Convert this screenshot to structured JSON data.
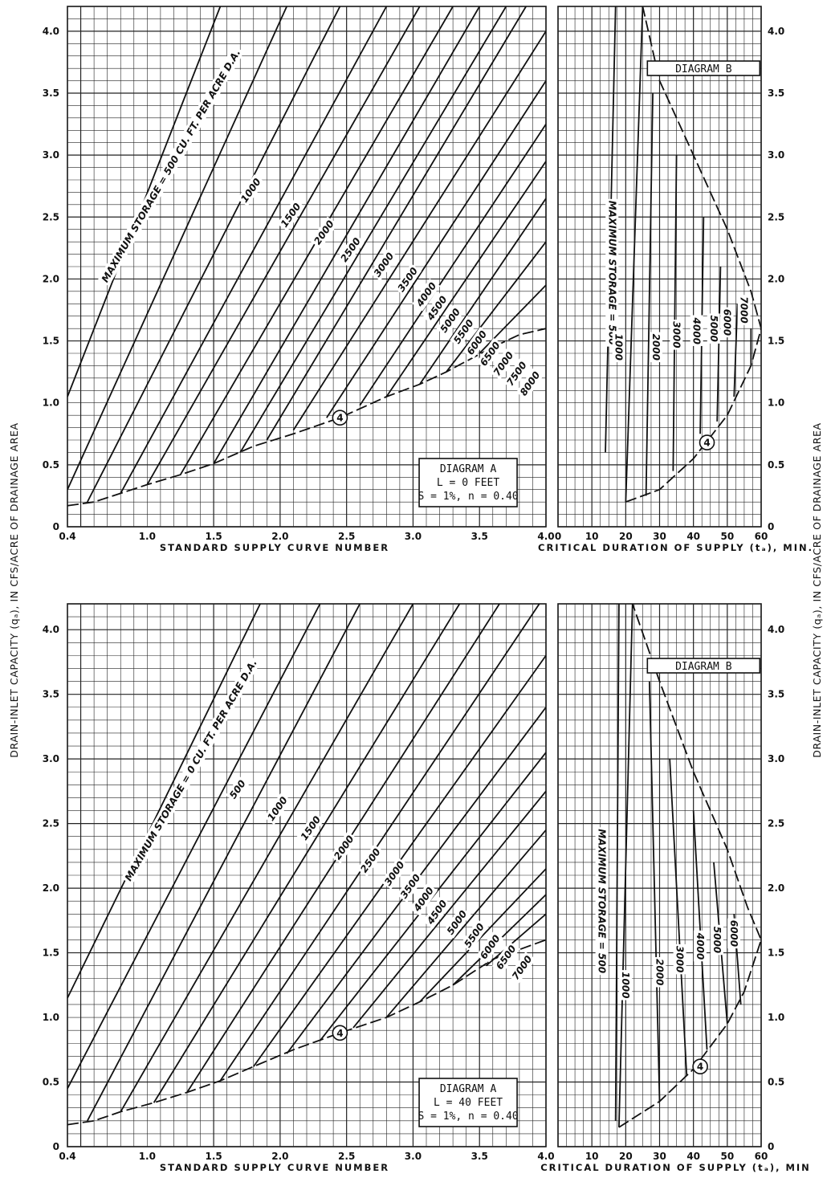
{
  "y_axis_label": "DRAIN-INLET CAPACITY (qₐ), IN CFS/ACRE OF DRAINAGE AREA",
  "colors": {
    "ink": "#111111",
    "grid": "#222222",
    "paper": "#ffffff"
  },
  "chart_data": [
    {
      "type": "line",
      "panel": "upper-left",
      "xlabel": "STANDARD SUPPLY CURVE NUMBER",
      "ylabel": "",
      "xlim": [
        0.4,
        4.0
      ],
      "ylim": [
        0,
        4.2
      ],
      "x_ticks": [
        "0.4",
        "1.0",
        "1.5",
        "2.0",
        "2.5",
        "3.0",
        "3.5",
        "4.0"
      ],
      "y_ticks": [
        "0",
        "0.5",
        "1.0",
        "1.5",
        "2.0",
        "2.5",
        "3.0",
        "3.5",
        "4.0"
      ],
      "legend_box": [
        "DIAGRAM A",
        "L = 0 FEET",
        "S = 1%, n = 0.40"
      ],
      "marker_label": "4",
      "marker_point": [
        2.45,
        0.88
      ],
      "series": [
        {
          "name": "MAXIMUM STORAGE = 500 CU. FT. PER ACRE D.A.",
          "x": [
            0.4,
            1.55
          ],
          "y": [
            1.05,
            4.2
          ]
        },
        {
          "name": "1000",
          "x": [
            0.4,
            2.05
          ],
          "y": [
            0.3,
            4.2
          ]
        },
        {
          "name": "1500",
          "x": [
            0.55,
            2.45
          ],
          "y": [
            0.2,
            4.2
          ]
        },
        {
          "name": "2000",
          "x": [
            0.8,
            2.8
          ],
          "y": [
            0.27,
            4.2
          ]
        },
        {
          "name": "2500",
          "x": [
            1.0,
            3.05
          ],
          "y": [
            0.34,
            4.2
          ]
        },
        {
          "name": "3000",
          "x": [
            1.25,
            3.3
          ],
          "y": [
            0.42,
            4.2
          ]
        },
        {
          "name": "3500",
          "x": [
            1.5,
            3.5
          ],
          "y": [
            0.51,
            4.2
          ]
        },
        {
          "name": "4000",
          "x": [
            1.7,
            3.7
          ],
          "y": [
            0.6,
            4.2
          ]
        },
        {
          "name": "4500",
          "x": [
            1.9,
            3.85
          ],
          "y": [
            0.7,
            4.2
          ]
        },
        {
          "name": "5000",
          "x": [
            2.1,
            4.0
          ],
          "y": [
            0.78,
            4.0
          ]
        },
        {
          "name": "5500",
          "x": [
            2.35,
            4.0
          ],
          "y": [
            0.88,
            3.6
          ]
        },
        {
          "name": "6000",
          "x": [
            2.6,
            4.0
          ],
          "y": [
            0.98,
            3.25
          ]
        },
        {
          "name": "6500",
          "x": [
            2.8,
            4.0
          ],
          "y": [
            1.05,
            2.95
          ]
        },
        {
          "name": "7000",
          "x": [
            3.05,
            4.0
          ],
          "y": [
            1.15,
            2.65
          ]
        },
        {
          "name": "7500",
          "x": [
            3.25,
            4.0
          ],
          "y": [
            1.25,
            2.3
          ]
        },
        {
          "name": "8000",
          "x": [
            3.5,
            4.0
          ],
          "y": [
            1.4,
            1.95
          ]
        }
      ],
      "curve_labels": [
        {
          "text": "MAXIMUM STORAGE = 500 CU. FT. PER ACRE D.A.",
          "x": 1.2,
          "y": 2.9,
          "angle": -60
        },
        {
          "text": "1000",
          "x": 1.8,
          "y": 2.7,
          "angle": -55
        },
        {
          "text": "1500",
          "x": 2.1,
          "y": 2.5,
          "angle": -55
        },
        {
          "text": "2000",
          "x": 2.35,
          "y": 2.36,
          "angle": -55
        },
        {
          "text": "2500",
          "x": 2.55,
          "y": 2.22,
          "angle": -55
        },
        {
          "text": "3000",
          "x": 2.8,
          "y": 2.1,
          "angle": -55
        },
        {
          "text": "3500",
          "x": 2.98,
          "y": 1.98,
          "angle": -55
        },
        {
          "text": "4000",
          "x": 3.12,
          "y": 1.86,
          "angle": -55
        },
        {
          "text": "4500",
          "x": 3.2,
          "y": 1.75,
          "angle": -55
        },
        {
          "text": "5000",
          "x": 3.3,
          "y": 1.65,
          "angle": -55
        },
        {
          "text": "5500",
          "x": 3.4,
          "y": 1.56,
          "angle": -55
        },
        {
          "text": "6000",
          "x": 3.5,
          "y": 1.47,
          "angle": -55
        },
        {
          "text": "6500",
          "x": 3.6,
          "y": 1.38,
          "angle": -55
        },
        {
          "text": "7000",
          "x": 3.7,
          "y": 1.3,
          "angle": -55
        },
        {
          "text": "7500",
          "x": 3.8,
          "y": 1.22,
          "angle": -55
        },
        {
          "text": "8000",
          "x": 3.9,
          "y": 1.14,
          "angle": -55
        }
      ],
      "envelope": {
        "x": [
          0.4,
          0.6,
          0.8,
          1.0,
          1.25,
          1.5,
          1.8,
          2.1,
          2.45,
          2.8,
          3.05,
          3.25,
          3.6,
          3.8,
          4.0
        ],
        "y": [
          0.17,
          0.2,
          0.27,
          0.34,
          0.42,
          0.51,
          0.65,
          0.75,
          0.88,
          1.05,
          1.15,
          1.25,
          1.45,
          1.55,
          1.6
        ]
      }
    },
    {
      "type": "line",
      "panel": "upper-right",
      "title": "DIAGRAM B",
      "xlabel": "CRITICAL DURATION OF SUPPLY (tₐ), MIN.",
      "ylabel": "",
      "xlim": [
        0,
        60
      ],
      "ylim": [
        0,
        4.2
      ],
      "x_ticks": [
        "0",
        "10",
        "20",
        "30",
        "40",
        "50",
        "60"
      ],
      "y_ticks": [
        "0",
        "0.5",
        "1.0",
        "1.5",
        "2.0",
        "2.5",
        "3.0",
        "3.5",
        "4.0"
      ],
      "marker_label": "4",
      "marker_point": [
        44,
        0.68
      ],
      "series": [
        {
          "name": "MAXIMUM STORAGE = 500",
          "x": [
            25,
            20
          ],
          "y": [
            4.2,
            0.2
          ]
        },
        {
          "name": "1000",
          "x": [
            17,
            14
          ],
          "y": [
            4.2,
            0.6
          ]
        },
        {
          "name": "2000",
          "x": [
            28,
            26
          ],
          "y": [
            3.5,
            0.25
          ]
        },
        {
          "name": "3000",
          "x": [
            35,
            34
          ],
          "y": [
            3.0,
            0.45
          ]
        },
        {
          "name": "4000",
          "x": [
            43,
            42
          ],
          "y": [
            2.5,
            0.75
          ]
        },
        {
          "name": "5000",
          "x": [
            48,
            47
          ],
          "y": [
            2.1,
            0.85
          ]
        },
        {
          "name": "6000",
          "x": [
            53,
            52
          ],
          "y": [
            1.8,
            1.05
          ]
        },
        {
          "name": "7000",
          "x": [
            57,
            57
          ],
          "y": [
            1.6,
            1.3
          ]
        }
      ],
      "curve_labels": [
        {
          "text": "MAXIMUM STORAGE = 500",
          "x": 15,
          "y": 2.05,
          "angle": 90
        },
        {
          "text": "1000",
          "x": 17,
          "y": 1.45,
          "angle": 90
        },
        {
          "text": "2000",
          "x": 28,
          "y": 1.45,
          "angle": 90
        },
        {
          "text": "3000",
          "x": 34,
          "y": 1.55,
          "angle": 90
        },
        {
          "text": "4000",
          "x": 40,
          "y": 1.58,
          "angle": 90
        },
        {
          "text": "5000",
          "x": 45,
          "y": 1.6,
          "angle": 90
        },
        {
          "text": "6000",
          "x": 49,
          "y": 1.65,
          "angle": 90
        },
        {
          "text": "7000",
          "x": 54,
          "y": 1.75,
          "angle": 90
        }
      ],
      "envelope": {
        "x": [
          20,
          30,
          40,
          50,
          57,
          60,
          57,
          50,
          40,
          30,
          25
        ],
        "y": [
          0.2,
          0.3,
          0.55,
          0.9,
          1.3,
          1.6,
          1.9,
          2.4,
          3.0,
          3.6,
          4.2
        ]
      }
    },
    {
      "type": "line",
      "panel": "lower-left",
      "xlabel": "STANDARD SUPPLY CURVE NUMBER",
      "ylabel": "",
      "xlim": [
        0.4,
        4.0
      ],
      "ylim": [
        0,
        4.2
      ],
      "x_ticks": [
        "0.4",
        "1.0",
        "1.5",
        "2.0",
        "2.5",
        "3.0",
        "3.5",
        "4.0"
      ],
      "y_ticks": [
        "0",
        "0.5",
        "1.0",
        "1.5",
        "2.0",
        "2.5",
        "3.0",
        "3.5",
        "4.0"
      ],
      "legend_box": [
        "DIAGRAM A",
        "L = 40 FEET",
        "S = 1%, n = 0.40"
      ],
      "marker_label": "4",
      "marker_point": [
        2.45,
        0.88
      ],
      "series": [
        {
          "name": "MAXIMUM STORAGE = 0 CU. FT. PER ACRE D.A.",
          "x": [
            0.4,
            1.85
          ],
          "y": [
            1.15,
            4.2
          ]
        },
        {
          "name": "500",
          "x": [
            0.4,
            2.3
          ],
          "y": [
            0.45,
            4.2
          ]
        },
        {
          "name": "1000",
          "x": [
            0.55,
            2.6
          ],
          "y": [
            0.2,
            4.2
          ]
        },
        {
          "name": "1500",
          "x": [
            0.8,
            3.0
          ],
          "y": [
            0.27,
            4.2
          ]
        },
        {
          "name": "2000",
          "x": [
            1.05,
            3.35
          ],
          "y": [
            0.34,
            4.2
          ]
        },
        {
          "name": "2500",
          "x": [
            1.3,
            3.65
          ],
          "y": [
            0.42,
            4.2
          ]
        },
        {
          "name": "3000",
          "x": [
            1.55,
            3.95
          ],
          "y": [
            0.51,
            4.2
          ]
        },
        {
          "name": "3500",
          "x": [
            1.8,
            4.0
          ],
          "y": [
            0.62,
            3.8
          ]
        },
        {
          "name": "4000",
          "x": [
            2.05,
            4.0
          ],
          "y": [
            0.72,
            3.4
          ]
        },
        {
          "name": "4500",
          "x": [
            2.3,
            4.0
          ],
          "y": [
            0.82,
            3.05
          ]
        },
        {
          "name": "5000",
          "x": [
            2.55,
            4.0
          ],
          "y": [
            0.92,
            2.75
          ]
        },
        {
          "name": "5500",
          "x": [
            2.8,
            4.0
          ],
          "y": [
            1.0,
            2.45
          ]
        },
        {
          "name": "6000",
          "x": [
            3.05,
            4.0
          ],
          "y": [
            1.12,
            2.15
          ]
        },
        {
          "name": "6500",
          "x": [
            3.3,
            4.0
          ],
          "y": [
            1.25,
            1.95
          ]
        },
        {
          "name": "7000",
          "x": [
            3.55,
            4.0
          ],
          "y": [
            1.4,
            1.8
          ]
        }
      ],
      "curve_labels": [
        {
          "text": "MAXIMUM STORAGE = 0 CU. FT. PER ACRE D.A.",
          "x": 1.35,
          "y": 2.9,
          "angle": -60
        },
        {
          "text": "500",
          "x": 1.7,
          "y": 2.75,
          "angle": -55
        },
        {
          "text": "1000",
          "x": 2.0,
          "y": 2.6,
          "angle": -55
        },
        {
          "text": "1500",
          "x": 2.25,
          "y": 2.45,
          "angle": -55
        },
        {
          "text": "2000",
          "x": 2.5,
          "y": 2.3,
          "angle": -55
        },
        {
          "text": "2500",
          "x": 2.7,
          "y": 2.2,
          "angle": -55
        },
        {
          "text": "3000",
          "x": 2.88,
          "y": 2.1,
          "angle": -55
        },
        {
          "text": "3500",
          "x": 3.0,
          "y": 2.0,
          "angle": -55
        },
        {
          "text": "4000",
          "x": 3.1,
          "y": 1.9,
          "angle": -55
        },
        {
          "text": "4500",
          "x": 3.2,
          "y": 1.8,
          "angle": -55
        },
        {
          "text": "5000",
          "x": 3.35,
          "y": 1.72,
          "angle": -55
        },
        {
          "text": "5500",
          "x": 3.48,
          "y": 1.62,
          "angle": -55
        },
        {
          "text": "6000",
          "x": 3.6,
          "y": 1.53,
          "angle": -55
        },
        {
          "text": "6500",
          "x": 3.72,
          "y": 1.45,
          "angle": -55
        },
        {
          "text": "7000",
          "x": 3.84,
          "y": 1.37,
          "angle": -55
        }
      ],
      "envelope": {
        "x": [
          0.4,
          0.6,
          0.8,
          1.05,
          1.3,
          1.55,
          1.8,
          2.1,
          2.45,
          2.8,
          3.05,
          3.3,
          3.6,
          4.0
        ],
        "y": [
          0.17,
          0.2,
          0.27,
          0.34,
          0.42,
          0.51,
          0.62,
          0.75,
          0.88,
          1.0,
          1.12,
          1.25,
          1.45,
          1.6
        ]
      }
    },
    {
      "type": "line",
      "panel": "lower-right",
      "title": "DIAGRAM B",
      "xlabel": "CRITICAL DURATION OF SUPPLY (tₐ), MIN",
      "ylabel": "",
      "xlim": [
        0,
        60
      ],
      "ylim": [
        0,
        4.2
      ],
      "x_ticks": [
        "10",
        "20",
        "30",
        "40",
        "50",
        "60"
      ],
      "y_ticks": [
        "0",
        "0.5",
        "1.0",
        "1.5",
        "2.0",
        "2.5",
        "3.0",
        "3.5",
        "4.0"
      ],
      "marker_label": "4",
      "marker_point": [
        42,
        0.62
      ],
      "series": [
        {
          "name": "MAXIMUM STORAGE = 500",
          "x": [
            22,
            18
          ],
          "y": [
            4.2,
            0.15
          ]
        },
        {
          "name": "1000",
          "x": [
            18,
            17
          ],
          "y": [
            4.2,
            0.2
          ]
        },
        {
          "name": "2000",
          "x": [
            27,
            30
          ],
          "y": [
            3.6,
            0.35
          ]
        },
        {
          "name": "3000",
          "x": [
            33,
            38
          ],
          "y": [
            3.0,
            0.55
          ]
        },
        {
          "name": "4000",
          "x": [
            40,
            44
          ],
          "y": [
            2.6,
            0.75
          ]
        },
        {
          "name": "5000",
          "x": [
            46,
            50
          ],
          "y": [
            2.2,
            0.95
          ]
        },
        {
          "name": "6000",
          "x": [
            52,
            54
          ],
          "y": [
            1.8,
            1.1
          ]
        }
      ],
      "curve_labels": [
        {
          "text": "MAXIMUM STORAGE = 500",
          "x": 12,
          "y": 1.9,
          "angle": 90
        },
        {
          "text": "1000",
          "x": 19,
          "y": 1.25,
          "angle": 90
        },
        {
          "text": "2000",
          "x": 29,
          "y": 1.35,
          "angle": 90
        },
        {
          "text": "3000",
          "x": 35,
          "y": 1.45,
          "angle": 90
        },
        {
          "text": "4000",
          "x": 41,
          "y": 1.55,
          "angle": 90
        },
        {
          "text": "5000",
          "x": 46,
          "y": 1.6,
          "angle": 90
        },
        {
          "text": "6000",
          "x": 51,
          "y": 1.65,
          "angle": 90
        }
      ],
      "envelope": {
        "x": [
          18,
          30,
          40,
          50,
          55,
          60,
          56,
          50,
          40,
          30,
          22
        ],
        "y": [
          0.15,
          0.35,
          0.6,
          0.95,
          1.2,
          1.6,
          1.85,
          2.3,
          2.9,
          3.6,
          4.2
        ]
      }
    }
  ]
}
